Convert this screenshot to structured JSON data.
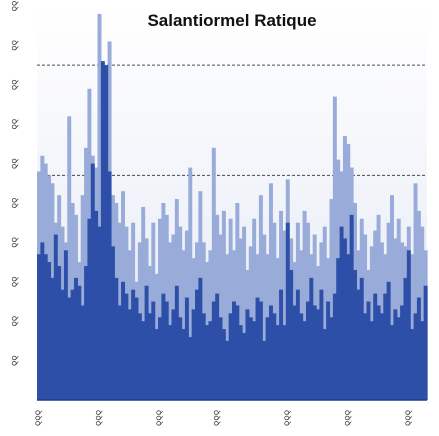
{
  "chart_data": {
    "type": "bar",
    "title": "Salantiormel Ratique",
    "xlabel": "",
    "ylabel": "",
    "ylim": [
      0,
      100
    ],
    "grid": "dashed horizontal reference lines",
    "legend": "none",
    "y_ticks": [
      {
        "value": 10,
        "label": "ꝺꝺ"
      },
      {
        "value": 20,
        "label": "ꝺꝺ"
      },
      {
        "value": 30,
        "label": "ꝺꝺ"
      },
      {
        "value": 40,
        "label": "ꝺꝺ"
      },
      {
        "value": 50,
        "label": "ꝺꝺ"
      },
      {
        "value": 60,
        "label": "ꝺꝺ"
      },
      {
        "value": 70,
        "label": "ꝺꝺ"
      },
      {
        "value": 80,
        "label": "ꝺꝺ"
      },
      {
        "value": 90,
        "label": "ꝺꝺ"
      },
      {
        "value": 100,
        "label": "ꝺꝺ"
      }
    ],
    "x_ticks": [
      {
        "index": 0,
        "label": "ꝺꝺꝺ"
      },
      {
        "index": 18,
        "label": "ꝺꝺꝺ"
      },
      {
        "index": 36,
        "label": "ꝺꝺꝺ"
      },
      {
        "index": 53,
        "label": "ꝺꝺꝺ"
      },
      {
        "index": 74,
        "label": "ꝺꝺꝺ"
      },
      {
        "index": 92,
        "label": "ꝺꝺꝺ"
      },
      {
        "index": 110,
        "label": "ꝺꝺꝺ"
      }
    ],
    "reference_lines": [
      85,
      57
    ],
    "series": [
      {
        "color": "#99acd9",
        "values": [
          58,
          62,
          60,
          57,
          55,
          45,
          52,
          44,
          40,
          72,
          50,
          47,
          35,
          52,
          64,
          79,
          62,
          59,
          98,
          66,
          60,
          91,
          52,
          50,
          45,
          53,
          44,
          38,
          45,
          30,
          40,
          49,
          41,
          34,
          45,
          32,
          46,
          50,
          47,
          40,
          42,
          51,
          44,
          38,
          43,
          59,
          36,
          40,
          53,
          40,
          35,
          38,
          64,
          47,
          42,
          48,
          37,
          46,
          38,
          50,
          41,
          44,
          33,
          39,
          46,
          37,
          52,
          42,
          37,
          55,
          45,
          36,
          48,
          43,
          56,
          41,
          35,
          45,
          38,
          48,
          45,
          37,
          42,
          34,
          40,
          44,
          36,
          51,
          77,
          61,
          58,
          67,
          65,
          59,
          50,
          38,
          46,
          42,
          33,
          39,
          43,
          47,
          40,
          37,
          45,
          52,
          41,
          46,
          40,
          39,
          44,
          37,
          55,
          48,
          44,
          38
        ]
      },
      {
        "color": "#2d4fa8",
        "values": [
          37,
          40,
          37,
          35,
          31,
          42,
          34,
          28,
          38,
          26,
          28,
          31,
          29,
          24,
          34,
          46,
          60,
          48,
          44,
          86,
          85,
          58,
          39,
          31,
          24,
          30,
          27,
          23,
          28,
          26,
          22,
          20,
          29,
          22,
          25,
          18,
          21,
          27,
          25,
          19,
          23,
          29,
          21,
          18,
          26,
          16,
          23,
          28,
          31,
          22,
          19,
          20,
          25,
          27,
          21,
          18,
          15,
          22,
          25,
          24,
          19,
          17,
          23,
          21,
          20,
          26,
          25,
          15,
          21,
          24,
          22,
          19,
          28,
          19,
          45,
          33,
          24,
          28,
          22,
          20,
          25,
          31,
          24,
          23,
          28,
          18,
          25,
          21,
          27,
          36,
          44,
          41,
          37,
          47,
          33,
          28,
          31,
          22,
          25,
          20,
          27,
          24,
          22,
          27,
          30,
          19,
          23,
          21,
          24,
          31,
          38,
          18,
          22,
          26,
          20,
          29
        ]
      }
    ]
  }
}
